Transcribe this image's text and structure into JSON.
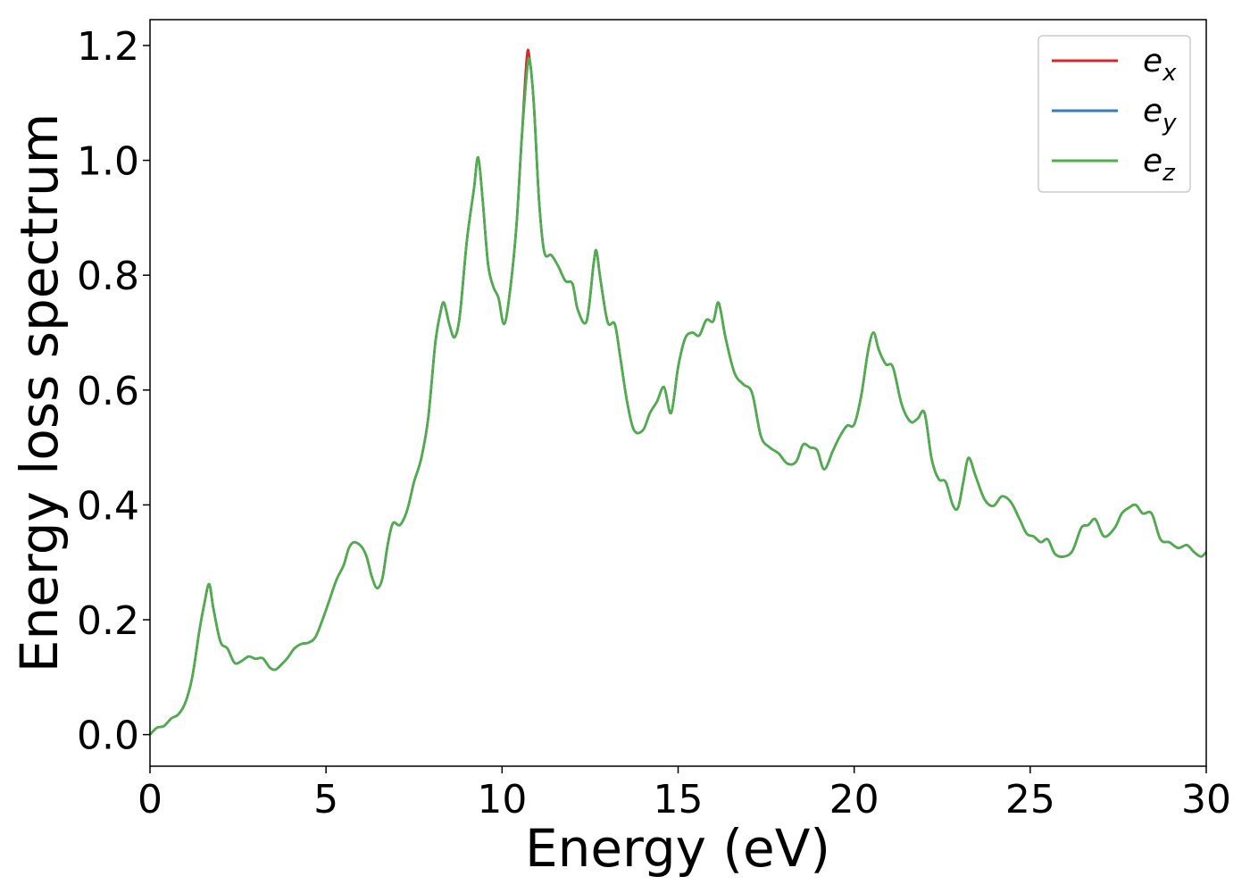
{
  "chart_data": {
    "type": "line",
    "title": "",
    "xlabel": "Energy (eV)",
    "ylabel": "Energy loss spectrum",
    "xlim": [
      0,
      30
    ],
    "ylim": [
      -0.055,
      1.245
    ],
    "xticks": [
      0,
      5,
      10,
      15,
      20,
      25,
      30
    ],
    "yticks": [
      0.0,
      0.2,
      0.4,
      0.6,
      0.8,
      1.0,
      1.2
    ],
    "xtick_labels": [
      "0",
      "5",
      "10",
      "15",
      "20",
      "25",
      "30"
    ],
    "ytick_labels": [
      "0.0",
      "0.2",
      "0.4",
      "0.6",
      "0.8",
      "1.0",
      "1.2"
    ],
    "grid": false,
    "legend_position": "top-right",
    "series": [
      {
        "name": "e_x",
        "label_base": "e",
        "label_sub": "x",
        "color": "#d62728",
        "points": [
          [
            0,
            0.0
          ],
          [
            0.2,
            0.012
          ],
          [
            0.4,
            0.015
          ],
          [
            0.6,
            0.028
          ],
          [
            0.8,
            0.035
          ],
          [
            1.0,
            0.055
          ],
          [
            1.2,
            0.1
          ],
          [
            1.4,
            0.18
          ],
          [
            1.55,
            0.23
          ],
          [
            1.68,
            0.262
          ],
          [
            1.8,
            0.22
          ],
          [
            2.0,
            0.162
          ],
          [
            2.2,
            0.15
          ],
          [
            2.4,
            0.125
          ],
          [
            2.6,
            0.128
          ],
          [
            2.8,
            0.136
          ],
          [
            3.0,
            0.132
          ],
          [
            3.2,
            0.133
          ],
          [
            3.4,
            0.117
          ],
          [
            3.55,
            0.113
          ],
          [
            3.7,
            0.12
          ],
          [
            3.9,
            0.133
          ],
          [
            4.1,
            0.15
          ],
          [
            4.3,
            0.158
          ],
          [
            4.5,
            0.16
          ],
          [
            4.7,
            0.17
          ],
          [
            4.9,
            0.2
          ],
          [
            5.1,
            0.235
          ],
          [
            5.3,
            0.27
          ],
          [
            5.5,
            0.295
          ],
          [
            5.65,
            0.325
          ],
          [
            5.8,
            0.335
          ],
          [
            6.0,
            0.328
          ],
          [
            6.15,
            0.31
          ],
          [
            6.3,
            0.275
          ],
          [
            6.45,
            0.255
          ],
          [
            6.6,
            0.272
          ],
          [
            6.75,
            0.33
          ],
          [
            6.9,
            0.368
          ],
          [
            7.1,
            0.365
          ],
          [
            7.3,
            0.39
          ],
          [
            7.5,
            0.44
          ],
          [
            7.7,
            0.48
          ],
          [
            7.9,
            0.55
          ],
          [
            8.1,
            0.68
          ],
          [
            8.25,
            0.735
          ],
          [
            8.35,
            0.752
          ],
          [
            8.5,
            0.715
          ],
          [
            8.65,
            0.692
          ],
          [
            8.8,
            0.73
          ],
          [
            9.0,
            0.86
          ],
          [
            9.2,
            0.95
          ],
          [
            9.32,
            1.005
          ],
          [
            9.45,
            0.93
          ],
          [
            9.6,
            0.82
          ],
          [
            9.75,
            0.78
          ],
          [
            9.9,
            0.76
          ],
          [
            10.05,
            0.715
          ],
          [
            10.2,
            0.76
          ],
          [
            10.4,
            0.88
          ],
          [
            10.55,
            1.03
          ],
          [
            10.7,
            1.15
          ],
          [
            10.78,
            1.175
          ],
          [
            10.9,
            1.1
          ],
          [
            11.05,
            0.93
          ],
          [
            11.2,
            0.84
          ],
          [
            11.4,
            0.835
          ],
          [
            11.6,
            0.815
          ],
          [
            11.8,
            0.79
          ],
          [
            12.0,
            0.785
          ],
          [
            12.15,
            0.74
          ],
          [
            12.4,
            0.72
          ],
          [
            12.6,
            0.82
          ],
          [
            12.68,
            0.842
          ],
          [
            12.8,
            0.79
          ],
          [
            13.0,
            0.718
          ],
          [
            13.2,
            0.715
          ],
          [
            13.35,
            0.66
          ],
          [
            13.55,
            0.58
          ],
          [
            13.75,
            0.53
          ],
          [
            14.0,
            0.53
          ],
          [
            14.2,
            0.56
          ],
          [
            14.4,
            0.58
          ],
          [
            14.6,
            0.605
          ],
          [
            14.8,
            0.56
          ],
          [
            15.0,
            0.64
          ],
          [
            15.2,
            0.69
          ],
          [
            15.4,
            0.7
          ],
          [
            15.6,
            0.695
          ],
          [
            15.8,
            0.722
          ],
          [
            16.0,
            0.72
          ],
          [
            16.15,
            0.752
          ],
          [
            16.35,
            0.69
          ],
          [
            16.6,
            0.63
          ],
          [
            16.85,
            0.61
          ],
          [
            17.1,
            0.595
          ],
          [
            17.35,
            0.52
          ],
          [
            17.6,
            0.5
          ],
          [
            17.85,
            0.49
          ],
          [
            18.1,
            0.472
          ],
          [
            18.35,
            0.475
          ],
          [
            18.55,
            0.505
          ],
          [
            18.75,
            0.5
          ],
          [
            18.95,
            0.495
          ],
          [
            19.15,
            0.462
          ],
          [
            19.4,
            0.495
          ],
          [
            19.6,
            0.52
          ],
          [
            19.8,
            0.538
          ],
          [
            20.0,
            0.54
          ],
          [
            20.2,
            0.59
          ],
          [
            20.4,
            0.67
          ],
          [
            20.55,
            0.7
          ],
          [
            20.7,
            0.67
          ],
          [
            20.9,
            0.645
          ],
          [
            21.1,
            0.64
          ],
          [
            21.35,
            0.575
          ],
          [
            21.6,
            0.545
          ],
          [
            21.8,
            0.55
          ],
          [
            22.0,
            0.56
          ],
          [
            22.2,
            0.48
          ],
          [
            22.4,
            0.445
          ],
          [
            22.6,
            0.44
          ],
          [
            22.8,
            0.4
          ],
          [
            22.95,
            0.395
          ],
          [
            23.1,
            0.44
          ],
          [
            23.25,
            0.482
          ],
          [
            23.45,
            0.45
          ],
          [
            23.7,
            0.41
          ],
          [
            23.95,
            0.398
          ],
          [
            24.2,
            0.415
          ],
          [
            24.45,
            0.405
          ],
          [
            24.7,
            0.375
          ],
          [
            24.9,
            0.35
          ],
          [
            25.1,
            0.345
          ],
          [
            25.3,
            0.335
          ],
          [
            25.5,
            0.34
          ],
          [
            25.7,
            0.315
          ],
          [
            25.95,
            0.31
          ],
          [
            26.2,
            0.32
          ],
          [
            26.45,
            0.36
          ],
          [
            26.65,
            0.365
          ],
          [
            26.85,
            0.375
          ],
          [
            27.1,
            0.345
          ],
          [
            27.4,
            0.36
          ],
          [
            27.6,
            0.385
          ],
          [
            27.8,
            0.395
          ],
          [
            28.0,
            0.4
          ],
          [
            28.2,
            0.385
          ],
          [
            28.45,
            0.385
          ],
          [
            28.7,
            0.34
          ],
          [
            28.95,
            0.335
          ],
          [
            29.2,
            0.325
          ],
          [
            29.45,
            0.33
          ],
          [
            29.65,
            0.318
          ],
          [
            29.85,
            0.31
          ],
          [
            30.0,
            0.318
          ]
        ],
        "overrides": [
          [
            10.78,
            1.178
          ],
          [
            13.1,
            0.712
          ]
        ]
      },
      {
        "name": "e_y",
        "label_base": "e",
        "label_sub": "y",
        "color": "#3a7bb0"
      },
      {
        "name": "e_z",
        "label_base": "e",
        "label_sub": "z",
        "color": "#4daf4a"
      }
    ]
  }
}
